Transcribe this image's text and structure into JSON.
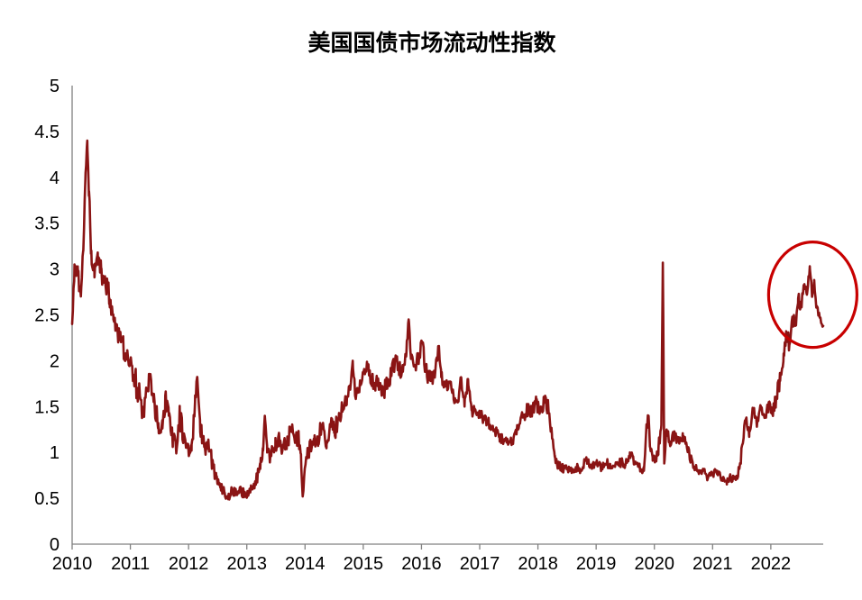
{
  "chart_data": {
    "type": "line",
    "title": "美国国债市场流动性指数",
    "xlabel": "",
    "ylabel": "",
    "grid": false,
    "legend": null,
    "xlim": [
      2010,
      2022.9
    ],
    "ylim": [
      0,
      5
    ],
    "x_ticks": [
      2010,
      2011,
      2012,
      2013,
      2014,
      2015,
      2016,
      2017,
      2018,
      2019,
      2020,
      2021,
      2022
    ],
    "y_ticks": [
      0,
      0.5,
      1,
      1.5,
      2,
      2.5,
      3,
      3.5,
      4,
      4.5,
      5
    ],
    "axis_color": "#808080",
    "text_color": "#000000",
    "noise_seed": 20221031,
    "noise_step": 0.012,
    "series": [
      {
        "name": "美国国债市场流动性指数",
        "color": "#8A1414",
        "keypoints": [
          [
            2010.0,
            2.4,
            0.06
          ],
          [
            2010.04,
            3.05,
            0.15
          ],
          [
            2010.1,
            2.95,
            0.18
          ],
          [
            2010.15,
            2.7,
            0.14
          ],
          [
            2010.19,
            3.2,
            0.12
          ],
          [
            2010.23,
            4.05,
            0.08
          ],
          [
            2010.26,
            4.4,
            0.04
          ],
          [
            2010.29,
            3.85,
            0.1
          ],
          [
            2010.33,
            3.2,
            0.15
          ],
          [
            2010.38,
            3.05,
            0.16
          ],
          [
            2010.44,
            3.18,
            0.14
          ],
          [
            2010.5,
            2.98,
            0.14
          ],
          [
            2010.57,
            2.85,
            0.12
          ],
          [
            2010.64,
            2.68,
            0.14
          ],
          [
            2010.71,
            2.45,
            0.12
          ],
          [
            2010.78,
            2.32,
            0.13
          ],
          [
            2010.85,
            2.22,
            0.14
          ],
          [
            2010.92,
            2.08,
            0.12
          ],
          [
            2011.0,
            1.95,
            0.14
          ],
          [
            2011.08,
            1.8,
            0.15
          ],
          [
            2011.15,
            1.62,
            0.17
          ],
          [
            2011.22,
            1.45,
            0.18
          ],
          [
            2011.28,
            1.68,
            0.16
          ],
          [
            2011.34,
            1.82,
            0.1
          ],
          [
            2011.4,
            1.55,
            0.14
          ],
          [
            2011.48,
            1.32,
            0.14
          ],
          [
            2011.55,
            1.26,
            0.11
          ],
          [
            2011.6,
            1.62,
            0.18
          ],
          [
            2011.66,
            1.4,
            0.14
          ],
          [
            2011.73,
            1.16,
            0.11
          ],
          [
            2011.8,
            1.06,
            0.09
          ],
          [
            2011.85,
            1.38,
            0.16
          ],
          [
            2011.91,
            1.15,
            0.11
          ],
          [
            2011.98,
            1.05,
            0.09
          ],
          [
            2012.05,
            1.02,
            0.09
          ],
          [
            2012.11,
            1.55,
            0.22
          ],
          [
            2012.15,
            1.82,
            0.05
          ],
          [
            2012.2,
            1.22,
            0.14
          ],
          [
            2012.28,
            1.06,
            0.11
          ],
          [
            2012.34,
            1.14,
            0.09
          ],
          [
            2012.41,
            0.86,
            0.08
          ],
          [
            2012.48,
            0.72,
            0.07
          ],
          [
            2012.55,
            0.63,
            0.06
          ],
          [
            2012.62,
            0.56,
            0.06
          ],
          [
            2012.68,
            0.49,
            0.05
          ],
          [
            2012.75,
            0.58,
            0.07
          ],
          [
            2012.82,
            0.55,
            0.06
          ],
          [
            2012.88,
            0.62,
            0.07
          ],
          [
            2012.95,
            0.55,
            0.06
          ],
          [
            2013.02,
            0.53,
            0.05
          ],
          [
            2013.09,
            0.61,
            0.06
          ],
          [
            2013.16,
            0.7,
            0.07
          ],
          [
            2013.23,
            0.82,
            0.08
          ],
          [
            2013.28,
            1.02,
            0.08
          ],
          [
            2013.31,
            1.4,
            0.05
          ],
          [
            2013.35,
            1.0,
            0.09
          ],
          [
            2013.42,
            0.96,
            0.09
          ],
          [
            2013.49,
            1.06,
            0.1
          ],
          [
            2013.56,
            1.14,
            0.11
          ],
          [
            2013.63,
            1.05,
            0.1
          ],
          [
            2013.7,
            1.12,
            0.1
          ],
          [
            2013.77,
            1.26,
            0.1
          ],
          [
            2013.83,
            1.12,
            0.1
          ],
          [
            2013.88,
            1.18,
            0.11
          ],
          [
            2013.93,
            0.98,
            0.08
          ],
          [
            2013.96,
            0.52,
            0.05
          ],
          [
            2014.02,
            0.95,
            0.08
          ],
          [
            2014.09,
            1.06,
            0.09
          ],
          [
            2014.16,
            1.1,
            0.1
          ],
          [
            2014.23,
            1.16,
            0.1
          ],
          [
            2014.3,
            1.3,
            0.11
          ],
          [
            2014.37,
            1.1,
            0.09
          ],
          [
            2014.44,
            1.28,
            0.12
          ],
          [
            2014.51,
            1.24,
            0.11
          ],
          [
            2014.58,
            1.38,
            0.11
          ],
          [
            2014.65,
            1.48,
            0.11
          ],
          [
            2014.72,
            1.6,
            0.12
          ],
          [
            2014.78,
            1.72,
            0.09
          ],
          [
            2014.82,
            2.0,
            0.06
          ],
          [
            2014.86,
            1.62,
            0.1
          ],
          [
            2014.92,
            1.7,
            0.1
          ],
          [
            2015.0,
            1.88,
            0.09
          ],
          [
            2015.07,
            1.95,
            0.09
          ],
          [
            2015.14,
            1.8,
            0.09
          ],
          [
            2015.21,
            1.76,
            0.09
          ],
          [
            2015.28,
            1.72,
            0.09
          ],
          [
            2015.35,
            1.66,
            0.09
          ],
          [
            2015.42,
            1.78,
            0.1
          ],
          [
            2015.49,
            1.88,
            0.1
          ],
          [
            2015.55,
            2.02,
            0.11
          ],
          [
            2015.61,
            1.92,
            0.09
          ],
          [
            2015.68,
            1.88,
            0.09
          ],
          [
            2015.74,
            2.08,
            0.1
          ],
          [
            2015.78,
            2.45,
            0.05
          ],
          [
            2015.82,
            2.02,
            0.09
          ],
          [
            2015.88,
            1.94,
            0.09
          ],
          [
            2015.95,
            2.05,
            0.1
          ],
          [
            2016.02,
            2.2,
            0.06
          ],
          [
            2016.07,
            1.9,
            0.09
          ],
          [
            2016.14,
            1.8,
            0.09
          ],
          [
            2016.21,
            1.84,
            0.09
          ],
          [
            2016.27,
            2.0,
            0.08
          ],
          [
            2016.3,
            2.16,
            0.05
          ],
          [
            2016.34,
            1.82,
            0.09
          ],
          [
            2016.41,
            1.72,
            0.09
          ],
          [
            2016.48,
            1.76,
            0.08
          ],
          [
            2016.55,
            1.62,
            0.07
          ],
          [
            2016.62,
            1.55,
            0.07
          ],
          [
            2016.68,
            1.82,
            0.06
          ],
          [
            2016.74,
            1.5,
            0.07
          ],
          [
            2016.8,
            1.8,
            0.06
          ],
          [
            2016.86,
            1.46,
            0.07
          ],
          [
            2016.95,
            1.42,
            0.06
          ],
          [
            2017.02,
            1.4,
            0.07
          ],
          [
            2017.1,
            1.35,
            0.06
          ],
          [
            2017.18,
            1.3,
            0.06
          ],
          [
            2017.26,
            1.25,
            0.06
          ],
          [
            2017.34,
            1.18,
            0.06
          ],
          [
            2017.42,
            1.12,
            0.06
          ],
          [
            2017.5,
            1.1,
            0.05
          ],
          [
            2017.58,
            1.15,
            0.06
          ],
          [
            2017.66,
            1.25,
            0.07
          ],
          [
            2017.74,
            1.38,
            0.08
          ],
          [
            2017.82,
            1.48,
            0.09
          ],
          [
            2017.9,
            1.42,
            0.08
          ],
          [
            2017.97,
            1.55,
            0.1
          ],
          [
            2018.05,
            1.5,
            0.1
          ],
          [
            2018.12,
            1.55,
            0.1
          ],
          [
            2018.18,
            1.48,
            0.09
          ],
          [
            2018.24,
            1.2,
            0.07
          ],
          [
            2018.29,
            0.95,
            0.05
          ],
          [
            2018.35,
            0.85,
            0.05
          ],
          [
            2018.45,
            0.82,
            0.05
          ],
          [
            2018.55,
            0.8,
            0.04
          ],
          [
            2018.65,
            0.84,
            0.05
          ],
          [
            2018.75,
            0.8,
            0.04
          ],
          [
            2018.82,
            0.92,
            0.06
          ],
          [
            2018.9,
            0.84,
            0.05
          ],
          [
            2019.0,
            0.87,
            0.05
          ],
          [
            2019.1,
            0.84,
            0.05
          ],
          [
            2019.2,
            0.88,
            0.05
          ],
          [
            2019.3,
            0.85,
            0.05
          ],
          [
            2019.4,
            0.9,
            0.06
          ],
          [
            2019.5,
            0.86,
            0.05
          ],
          [
            2019.58,
            1.0,
            0.06
          ],
          [
            2019.66,
            0.87,
            0.05
          ],
          [
            2019.74,
            0.84,
            0.04
          ],
          [
            2019.82,
            0.8,
            0.04
          ],
          [
            2019.87,
            1.3,
            0.1
          ],
          [
            2019.9,
            1.4,
            0.05
          ],
          [
            2019.93,
            1.05,
            0.07
          ],
          [
            2019.97,
            0.95,
            0.05
          ],
          [
            2020.02,
            0.92,
            0.05
          ],
          [
            2020.07,
            1.05,
            0.07
          ],
          [
            2020.12,
            1.3,
            0.08
          ],
          [
            2020.145,
            3.07,
            0.01
          ],
          [
            2020.17,
            0.88,
            0.04
          ],
          [
            2020.21,
            1.25,
            0.07
          ],
          [
            2020.28,
            1.12,
            0.07
          ],
          [
            2020.35,
            1.2,
            0.07
          ],
          [
            2020.42,
            1.12,
            0.06
          ],
          [
            2020.49,
            1.17,
            0.06
          ],
          [
            2020.56,
            1.05,
            0.06
          ],
          [
            2020.63,
            0.92,
            0.05
          ],
          [
            2020.7,
            0.84,
            0.05
          ],
          [
            2020.78,
            0.78,
            0.04
          ],
          [
            2020.85,
            0.8,
            0.05
          ],
          [
            2020.92,
            0.72,
            0.04
          ],
          [
            2021.0,
            0.76,
            0.05
          ],
          [
            2021.08,
            0.8,
            0.05
          ],
          [
            2021.16,
            0.72,
            0.04
          ],
          [
            2021.24,
            0.68,
            0.04
          ],
          [
            2021.32,
            0.73,
            0.05
          ],
          [
            2021.4,
            0.7,
            0.04
          ],
          [
            2021.46,
            0.82,
            0.06
          ],
          [
            2021.52,
            1.1,
            0.08
          ],
          [
            2021.58,
            1.38,
            0.08
          ],
          [
            2021.63,
            1.22,
            0.07
          ],
          [
            2021.7,
            1.45,
            0.08
          ],
          [
            2021.76,
            1.28,
            0.07
          ],
          [
            2021.83,
            1.5,
            0.07
          ],
          [
            2021.89,
            1.38,
            0.07
          ],
          [
            2021.96,
            1.52,
            0.07
          ],
          [
            2022.02,
            1.42,
            0.07
          ],
          [
            2022.09,
            1.58,
            0.09
          ],
          [
            2022.16,
            1.78,
            0.1
          ],
          [
            2022.22,
            2.08,
            0.1
          ],
          [
            2022.27,
            2.28,
            0.09
          ],
          [
            2022.32,
            2.18,
            0.09
          ],
          [
            2022.37,
            2.48,
            0.09
          ],
          [
            2022.42,
            2.38,
            0.08
          ],
          [
            2022.47,
            2.68,
            0.08
          ],
          [
            2022.52,
            2.58,
            0.07
          ],
          [
            2022.57,
            2.82,
            0.07
          ],
          [
            2022.62,
            2.72,
            0.07
          ],
          [
            2022.67,
            3.03,
            0.04
          ],
          [
            2022.71,
            2.7,
            0.06
          ],
          [
            2022.745,
            2.88,
            0.04
          ],
          [
            2022.78,
            2.58,
            0.05
          ],
          [
            2022.84,
            2.47,
            0.04
          ],
          [
            2022.9,
            2.38,
            0.03
          ]
        ]
      }
    ],
    "annotation": {
      "shape": "ellipse",
      "t": 2022.72,
      "v": 2.72,
      "rt": 0.759,
      "rv": 0.575,
      "color": "#C80000"
    }
  }
}
